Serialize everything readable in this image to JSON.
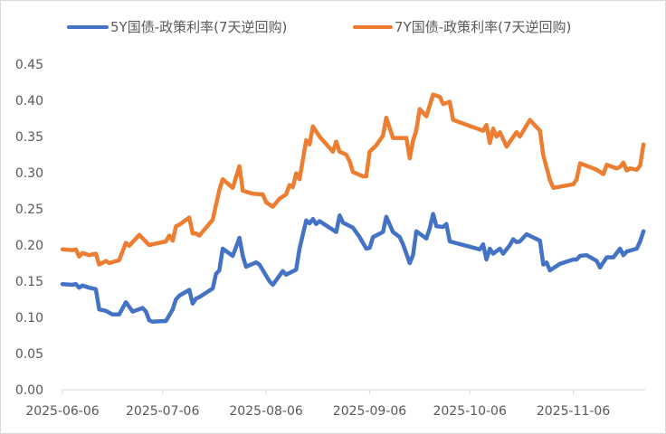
{
  "chart_data": {
    "type": "line",
    "title": "",
    "xlabel": "",
    "ylabel": "",
    "ylim": [
      0,
      0.45
    ],
    "yticks": [
      "0.00",
      "0.05",
      "0.10",
      "0.15",
      "0.20",
      "0.25",
      "0.30",
      "0.35",
      "0.40",
      "0.45"
    ],
    "xlim": [
      "2025-06-06",
      "2025-11-28"
    ],
    "xticks": [
      "2025-06-06",
      "2025-07-06",
      "2025-08-06",
      "2025-09-06",
      "2025-10-06",
      "2025-11-06"
    ],
    "grid": false,
    "legend": "top",
    "series": [
      {
        "name": "5Y国债-政策利率(7天逆回购)",
        "color": "#4472C4",
        "points": [
          [
            "2025-06-06",
            0.146
          ],
          [
            "2025-06-09",
            0.145
          ],
          [
            "2025-06-10",
            0.146
          ],
          [
            "2025-06-11",
            0.141
          ],
          [
            "2025-06-12",
            0.144
          ],
          [
            "2025-06-14",
            0.141
          ],
          [
            "2025-06-16",
            0.139
          ],
          [
            "2025-06-17",
            0.111
          ],
          [
            "2025-06-19",
            0.109
          ],
          [
            "2025-06-21",
            0.104
          ],
          [
            "2025-06-23",
            0.104
          ],
          [
            "2025-06-25",
            0.121
          ],
          [
            "2025-06-27",
            0.108
          ],
          [
            "2025-06-30",
            0.113
          ],
          [
            "2025-07-01",
            0.108
          ],
          [
            "2025-07-02",
            0.096
          ],
          [
            "2025-07-03",
            0.094
          ],
          [
            "2025-07-07",
            0.095
          ],
          [
            "2025-07-09",
            0.111
          ],
          [
            "2025-07-10",
            0.125
          ],
          [
            "2025-07-11",
            0.13
          ],
          [
            "2025-07-14",
            0.138
          ],
          [
            "2025-07-15",
            0.119
          ],
          [
            "2025-07-16",
            0.126
          ],
          [
            "2025-07-17",
            0.128
          ],
          [
            "2025-07-21",
            0.14
          ],
          [
            "2025-07-22",
            0.16
          ],
          [
            "2025-07-23",
            0.165
          ],
          [
            "2025-07-24",
            0.195
          ],
          [
            "2025-07-27",
            0.185
          ],
          [
            "2025-07-29",
            0.21
          ],
          [
            "2025-07-30",
            0.185
          ],
          [
            "2025-07-31",
            0.17
          ],
          [
            "2025-08-03",
            0.176
          ],
          [
            "2025-08-04",
            0.173
          ],
          [
            "2025-08-07",
            0.15
          ],
          [
            "2025-08-08",
            0.145
          ],
          [
            "2025-08-11",
            0.164
          ],
          [
            "2025-08-12",
            0.159
          ],
          [
            "2025-08-15",
            0.166
          ],
          [
            "2025-08-16",
            0.195
          ],
          [
            "2025-08-18",
            0.234
          ],
          [
            "2025-08-19",
            0.23
          ],
          [
            "2025-08-20",
            0.236
          ],
          [
            "2025-08-21",
            0.229
          ],
          [
            "2025-08-22",
            0.233
          ],
          [
            "2025-08-25",
            0.224
          ],
          [
            "2025-08-27",
            0.218
          ],
          [
            "2025-08-28",
            0.241
          ],
          [
            "2025-08-29",
            0.231
          ],
          [
            "2025-09-01",
            0.224
          ],
          [
            "2025-09-03",
            0.211
          ],
          [
            "2025-09-05",
            0.195
          ],
          [
            "2025-09-06",
            0.196
          ],
          [
            "2025-09-07",
            0.211
          ],
          [
            "2025-09-10",
            0.218
          ],
          [
            "2025-09-11",
            0.239
          ],
          [
            "2025-09-13",
            0.218
          ],
          [
            "2025-09-15",
            0.211
          ],
          [
            "2025-09-16",
            0.201
          ],
          [
            "2025-09-18",
            0.175
          ],
          [
            "2025-09-19",
            0.186
          ],
          [
            "2025-09-20",
            0.219
          ],
          [
            "2025-09-23",
            0.209
          ],
          [
            "2025-09-24",
            0.223
          ],
          [
            "2025-09-25",
            0.243
          ],
          [
            "2025-09-26",
            0.226
          ],
          [
            "2025-09-28",
            0.225
          ],
          [
            "2025-09-29",
            0.229
          ],
          [
            "2025-09-30",
            0.205
          ],
          [
            "2025-10-09",
            0.194
          ],
          [
            "2025-10-10",
            0.201
          ],
          [
            "2025-10-11",
            0.18
          ],
          [
            "2025-10-12",
            0.195
          ],
          [
            "2025-10-13",
            0.188
          ],
          [
            "2025-10-15",
            0.195
          ],
          [
            "2025-10-16",
            0.188
          ],
          [
            "2025-10-18",
            0.2
          ],
          [
            "2025-10-19",
            0.208
          ],
          [
            "2025-10-20",
            0.204
          ],
          [
            "2025-10-21",
            0.205
          ],
          [
            "2025-10-23",
            0.215
          ],
          [
            "2025-10-27",
            0.206
          ],
          [
            "2025-10-28",
            0.173
          ],
          [
            "2025-10-29",
            0.176
          ],
          [
            "2025-10-30",
            0.165
          ],
          [
            "2025-11-02",
            0.174
          ],
          [
            "2025-11-06",
            0.18
          ],
          [
            "2025-11-07",
            0.18
          ],
          [
            "2025-11-08",
            0.185
          ],
          [
            "2025-11-10",
            0.186
          ],
          [
            "2025-11-13",
            0.178
          ],
          [
            "2025-11-14",
            0.169
          ],
          [
            "2025-11-16",
            0.183
          ],
          [
            "2025-11-18",
            0.183
          ],
          [
            "2025-11-20",
            0.195
          ],
          [
            "2025-11-21",
            0.186
          ],
          [
            "2025-11-22",
            0.191
          ],
          [
            "2025-11-25",
            0.195
          ],
          [
            "2025-11-26",
            0.205
          ],
          [
            "2025-11-27",
            0.219
          ]
        ]
      },
      {
        "name": "7Y国债-政策利率(7天逆回购)",
        "color": "#ED7D31",
        "points": [
          [
            "2025-06-06",
            0.194
          ],
          [
            "2025-06-09",
            0.193
          ],
          [
            "2025-06-10",
            0.194
          ],
          [
            "2025-06-11",
            0.184
          ],
          [
            "2025-06-12",
            0.189
          ],
          [
            "2025-06-14",
            0.186
          ],
          [
            "2025-06-16",
            0.188
          ],
          [
            "2025-06-17",
            0.173
          ],
          [
            "2025-06-19",
            0.178
          ],
          [
            "2025-06-20",
            0.175
          ],
          [
            "2025-06-23",
            0.179
          ],
          [
            "2025-06-25",
            0.203
          ],
          [
            "2025-06-26",
            0.199
          ],
          [
            "2025-06-29",
            0.214
          ],
          [
            "2025-07-02",
            0.2
          ],
          [
            "2025-07-03",
            0.201
          ],
          [
            "2025-07-07",
            0.205
          ],
          [
            "2025-07-08",
            0.213
          ],
          [
            "2025-07-09",
            0.206
          ],
          [
            "2025-07-10",
            0.226
          ],
          [
            "2025-07-11",
            0.228
          ],
          [
            "2025-07-14",
            0.238
          ],
          [
            "2025-07-15",
            0.216
          ],
          [
            "2025-07-16",
            0.216
          ],
          [
            "2025-07-17",
            0.213
          ],
          [
            "2025-07-21",
            0.235
          ],
          [
            "2025-07-23",
            0.276
          ],
          [
            "2025-07-24",
            0.291
          ],
          [
            "2025-07-27",
            0.279
          ],
          [
            "2025-07-29",
            0.309
          ],
          [
            "2025-07-30",
            0.275
          ],
          [
            "2025-08-02",
            0.271
          ],
          [
            "2025-08-05",
            0.27
          ],
          [
            "2025-08-06",
            0.259
          ],
          [
            "2025-08-08",
            0.253
          ],
          [
            "2025-08-10",
            0.264
          ],
          [
            "2025-08-12",
            0.27
          ],
          [
            "2025-08-13",
            0.283
          ],
          [
            "2025-08-14",
            0.28
          ],
          [
            "2025-08-15",
            0.299
          ],
          [
            "2025-08-16",
            0.291
          ],
          [
            "2025-08-18",
            0.345
          ],
          [
            "2025-08-19",
            0.339
          ],
          [
            "2025-08-20",
            0.364
          ],
          [
            "2025-08-22",
            0.35
          ],
          [
            "2025-08-26",
            0.329
          ],
          [
            "2025-08-27",
            0.343
          ],
          [
            "2025-08-28",
            0.329
          ],
          [
            "2025-08-30",
            0.325
          ],
          [
            "2025-08-31",
            0.316
          ],
          [
            "2025-09-01",
            0.301
          ],
          [
            "2025-09-04",
            0.295
          ],
          [
            "2025-09-05",
            0.295
          ],
          [
            "2025-09-06",
            0.329
          ],
          [
            "2025-09-08",
            0.338
          ],
          [
            "2025-09-10",
            0.351
          ],
          [
            "2025-09-11",
            0.376
          ],
          [
            "2025-09-13",
            0.348
          ],
          [
            "2025-09-15",
            0.348
          ],
          [
            "2025-09-17",
            0.348
          ],
          [
            "2025-09-18",
            0.32
          ],
          [
            "2025-09-19",
            0.344
          ],
          [
            "2025-09-20",
            0.359
          ],
          [
            "2025-09-21",
            0.388
          ],
          [
            "2025-09-23",
            0.378
          ],
          [
            "2025-09-24",
            0.393
          ],
          [
            "2025-09-25",
            0.408
          ],
          [
            "2025-09-27",
            0.405
          ],
          [
            "2025-09-28",
            0.395
          ],
          [
            "2025-09-30",
            0.398
          ],
          [
            "2025-10-01",
            0.373
          ],
          [
            "2025-10-10",
            0.358
          ],
          [
            "2025-10-11",
            0.366
          ],
          [
            "2025-10-12",
            0.341
          ],
          [
            "2025-10-13",
            0.361
          ],
          [
            "2025-10-14",
            0.35
          ],
          [
            "2025-10-15",
            0.356
          ],
          [
            "2025-10-17",
            0.336
          ],
          [
            "2025-10-20",
            0.356
          ],
          [
            "2025-10-21",
            0.35
          ],
          [
            "2025-10-24",
            0.373
          ],
          [
            "2025-10-27",
            0.358
          ],
          [
            "2025-10-28",
            0.324
          ],
          [
            "2025-10-30",
            0.29
          ],
          [
            "2025-10-31",
            0.279
          ],
          [
            "2025-11-06",
            0.284
          ],
          [
            "2025-11-07",
            0.291
          ],
          [
            "2025-11-08",
            0.313
          ],
          [
            "2025-11-12",
            0.306
          ],
          [
            "2025-11-13",
            0.304
          ],
          [
            "2025-11-15",
            0.298
          ],
          [
            "2025-11-16",
            0.311
          ],
          [
            "2025-11-19",
            0.306
          ],
          [
            "2025-11-20",
            0.308
          ],
          [
            "2025-11-21",
            0.314
          ],
          [
            "2025-11-22",
            0.303
          ],
          [
            "2025-11-23",
            0.306
          ],
          [
            "2025-11-25",
            0.304
          ],
          [
            "2025-11-26",
            0.31
          ],
          [
            "2025-11-27",
            0.339
          ]
        ]
      }
    ]
  }
}
